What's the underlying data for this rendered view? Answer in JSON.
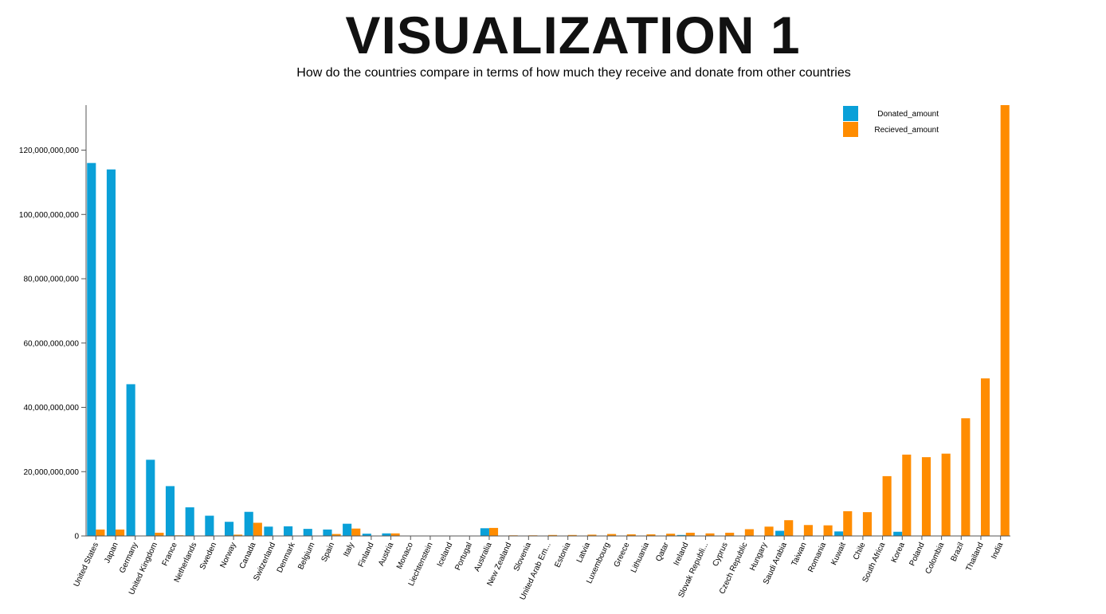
{
  "page": {
    "title": "VISUALIZATION 1",
    "subtitle": "How do the countries compare in terms of how much they receive and donate from other countries"
  },
  "colors": {
    "donated": "#0aa0d8",
    "received": "#ff8c00",
    "axis": "#555555"
  },
  "chart_data": {
    "type": "bar",
    "title": "VISUALIZATION 1",
    "subtitle": "How do the countries compare in terms of how much they receive and donate from other countries",
    "xlabel": "",
    "ylabel": "",
    "ylim": [
      0,
      134000000000
    ],
    "y_ticks": [
      0,
      20000000000,
      40000000000,
      60000000000,
      80000000000,
      100000000000,
      120000000000
    ],
    "y_tick_labels": [
      "0",
      "20,000,000,000",
      "40,000,000,000",
      "60,000,000,000",
      "80,000,000,000",
      "100,000,000,000",
      "120,000,000,000"
    ],
    "legend_position": "top-right",
    "grid": false,
    "categories": [
      "United States",
      "Japan",
      "Germany",
      "United Kingdom",
      "France",
      "Netherlands",
      "Sweden",
      "Norway",
      "Canada",
      "Switzerland",
      "Denmark",
      "Belgium",
      "Spain",
      "Italy",
      "Finland",
      "Austria",
      "Monaco",
      "Liechtenstein",
      "Iceland",
      "Portugal",
      "Australia",
      "New Zealand",
      "Slovenia",
      "United Arab Em...",
      "Estonia",
      "Latvia",
      "Luxembourg",
      "Greece",
      "Lithuania",
      "Qatar",
      "Ireland",
      "Slovak Republi...",
      "Cyprus",
      "Czech Republic",
      "Hungary",
      "Saudi Arabia",
      "Taiwan",
      "Romania",
      "Kuwait",
      "Chile",
      "South Africa",
      "Korea",
      "Poland",
      "Colombia",
      "Brazil",
      "Thailand",
      "India"
    ],
    "series": [
      {
        "name": "Donated_amount",
        "values": [
          116000000000,
          114000000000,
          47200000000,
          23700000000,
          15500000000,
          8900000000,
          6300000000,
          4400000000,
          7500000000,
          2900000000,
          3000000000,
          2200000000,
          2000000000,
          3800000000,
          700000000,
          800000000,
          0,
          0,
          0,
          0,
          2400000000,
          0,
          0,
          0,
          0,
          0,
          0,
          0,
          0,
          0,
          300000000,
          0,
          0,
          0,
          0,
          1600000000,
          0,
          0,
          1400000000,
          0,
          0,
          1300000000,
          0,
          0,
          0,
          0,
          0
        ]
      },
      {
        "name": "Recieved_amount",
        "values": [
          2000000000,
          2000000000,
          0,
          1000000000,
          200000000,
          0,
          0,
          400000000,
          4100000000,
          0,
          0,
          0,
          600000000,
          2300000000,
          0,
          800000000,
          0,
          0,
          0,
          0,
          2500000000,
          200000000,
          200000000,
          300000000,
          300000000,
          400000000,
          600000000,
          500000000,
          500000000,
          700000000,
          1000000000,
          800000000,
          1000000000,
          2100000000,
          2900000000,
          4900000000,
          3400000000,
          3300000000,
          7700000000,
          7400000000,
          18600000000,
          25300000000,
          24500000000,
          25600000000,
          36600000000,
          49000000000,
          134000000000
        ]
      }
    ]
  }
}
